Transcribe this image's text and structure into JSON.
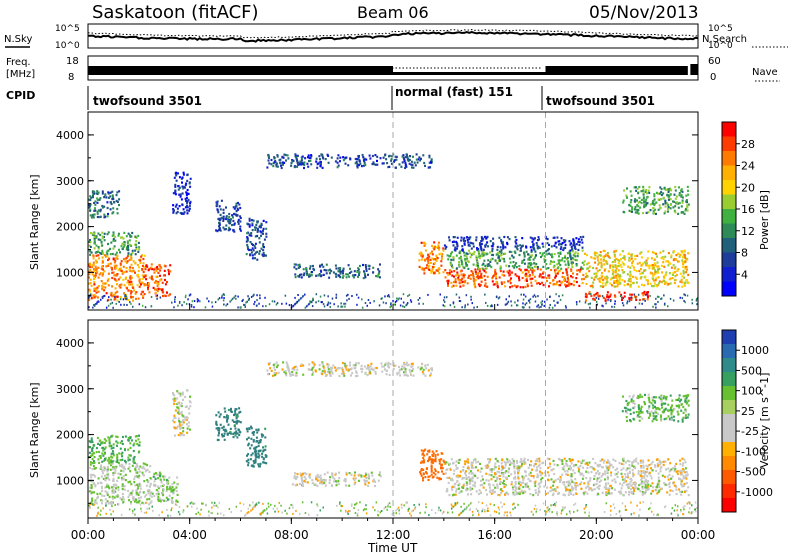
{
  "header": {
    "station": "Saskatoon (fitACF)",
    "beam": "Beam 06",
    "date": "05/Nov/2013"
  },
  "side_labels": {
    "nsky": "N.Sky",
    "nsearch": "N.Search",
    "freq_line1": "Freq.",
    "freq_line2": "[MHz]",
    "nave": "Nave",
    "cpid": "CPID"
  },
  "small_axes": {
    "noise_left_ticks": [
      "10^5",
      "10^0"
    ],
    "noise_right_ticks": [
      "10^5",
      "10^0"
    ],
    "freq_left_ticks": [
      "18",
      "8"
    ],
    "freq_right_ticks": [
      "60",
      "0"
    ]
  },
  "cpid_segments": [
    {
      "label": "twofsound 3501",
      "start_hour": 0
    },
    {
      "label": "normal (fast) 151",
      "start_hour": 12
    },
    {
      "label": "twofsound 3501",
      "start_hour": 18
    }
  ],
  "colorbars": {
    "power": {
      "title": "Power [dB]",
      "ticks": [
        "28",
        "24",
        "20",
        "16",
        "12",
        "8",
        "4"
      ],
      "colors": [
        "#ff0000",
        "#ff3c00",
        "#ff7a00",
        "#ffb000",
        "#ffd200",
        "#9acd32",
        "#40b040",
        "#2e8b57",
        "#20607a",
        "#1e3c9a",
        "#1020d0",
        "#0000ff"
      ]
    },
    "velocity": {
      "title": "Velocity [m s^-1]",
      "ticks": [
        "1000",
        "500",
        "100",
        "25",
        "-25",
        "-100",
        "-500",
        "-1000"
      ],
      "colors": [
        "#1f3fb0",
        "#2a6ab0",
        "#2f8a8a",
        "#35a060",
        "#66c030",
        "#a8d060",
        "#c8c8c8",
        "#c8c8c8",
        "#ffb000",
        "#ff8a00",
        "#ff5a00",
        "#ff2a00",
        "#ff0000"
      ]
    }
  },
  "chart_data": {
    "type": "heatmap",
    "xlabel": "Time UT",
    "x_ticks": [
      "00:00",
      "04:00",
      "08:00",
      "12:00",
      "16:00",
      "20:00",
      "00:00"
    ],
    "xlim_hours": [
      0,
      24
    ],
    "ylabel": "Slant Range [km]",
    "y_ticks": [
      "4000",
      "3000",
      "2000",
      "1000"
    ],
    "ylim_km": [
      180,
      4500
    ],
    "dashed_time_markers_hours": [
      12,
      18
    ],
    "panels": [
      {
        "quantity": "Power [dB]",
        "regions": [
          {
            "t0": 0.0,
            "t1": 2.2,
            "r0": 400,
            "r1": 1400,
            "value": 24
          },
          {
            "t0": 0.0,
            "t1": 2.0,
            "r0": 1400,
            "r1": 1900,
            "value": 14
          },
          {
            "t0": 2.2,
            "t1": 3.2,
            "r0": 500,
            "r1": 1200,
            "value": 26
          },
          {
            "t0": 0.0,
            "t1": 1.2,
            "r0": 2200,
            "r1": 2800,
            "value": 10
          },
          {
            "t0": 3.3,
            "t1": 4.0,
            "r0": 2300,
            "r1": 3200,
            "value": 6
          },
          {
            "t0": 5.0,
            "t1": 6.0,
            "r0": 1900,
            "r1": 2600,
            "value": 8
          },
          {
            "t0": 6.2,
            "t1": 7.0,
            "r0": 1300,
            "r1": 2200,
            "value": 8
          },
          {
            "t0": 8.0,
            "t1": 11.5,
            "r0": 900,
            "r1": 1200,
            "value": 10
          },
          {
            "t0": 7.0,
            "t1": 13.5,
            "r0": 3300,
            "r1": 3600,
            "value": 8
          },
          {
            "t0": 13.0,
            "t1": 14.0,
            "r0": 1000,
            "r1": 1700,
            "value": 24
          },
          {
            "t0": 14.0,
            "t1": 19.5,
            "r0": 700,
            "r1": 1100,
            "value": 26
          },
          {
            "t0": 14.0,
            "t1": 19.5,
            "r0": 1100,
            "r1": 1500,
            "value": 14
          },
          {
            "t0": 14.0,
            "t1": 19.5,
            "r0": 1500,
            "r1": 1800,
            "value": 7
          },
          {
            "t0": 19.5,
            "t1": 23.6,
            "r0": 700,
            "r1": 1500,
            "value": 20
          },
          {
            "t0": 21.0,
            "t1": 23.6,
            "r0": 2300,
            "r1": 2900,
            "value": 14
          },
          {
            "t0": 19.5,
            "t1": 22.0,
            "r0": 400,
            "r1": 600,
            "value": 28
          }
        ]
      },
      {
        "quantity": "Velocity [m s^-1]",
        "regions": [
          {
            "t0": 0.0,
            "t1": 2.5,
            "r0": 500,
            "r1": 1400,
            "value": 20
          },
          {
            "t0": 0.0,
            "t1": 2.0,
            "r0": 1400,
            "r1": 2000,
            "value": 100
          },
          {
            "t0": 2.5,
            "t1": 3.5,
            "r0": 500,
            "r1": 1200,
            "value": 50
          },
          {
            "t0": 3.3,
            "t1": 4.0,
            "r0": 2000,
            "r1": 3000,
            "value": 0
          },
          {
            "t0": 5.0,
            "t1": 6.0,
            "r0": 1900,
            "r1": 2600,
            "value": 300
          },
          {
            "t0": 6.2,
            "t1": 7.0,
            "r0": 1300,
            "r1": 2200,
            "value": 300
          },
          {
            "t0": 8.0,
            "t1": 11.5,
            "r0": 900,
            "r1": 1200,
            "value": 0
          },
          {
            "t0": 7.0,
            "t1": 13.5,
            "r0": 3300,
            "r1": 3600,
            "value": 0
          },
          {
            "t0": 13.0,
            "t1": 14.0,
            "r0": 1000,
            "r1": 1700,
            "value": -300
          },
          {
            "t0": 14.0,
            "t1": 19.5,
            "r0": 700,
            "r1": 1500,
            "value": 0
          },
          {
            "t0": 19.5,
            "t1": 23.6,
            "r0": 700,
            "r1": 1500,
            "value": 0
          },
          {
            "t0": 21.0,
            "t1": 23.6,
            "r0": 2300,
            "r1": 2900,
            "value": 80
          }
        ]
      }
    ]
  }
}
